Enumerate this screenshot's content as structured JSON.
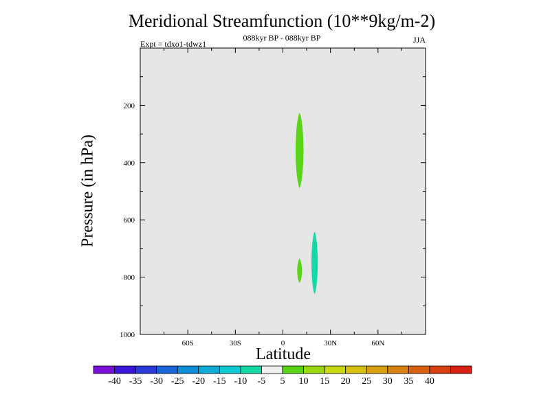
{
  "chart_data": {
    "type": "contour",
    "title": "Meridional Streamfunction (10**9kg/m-2)",
    "subtitle_center": "088kyr BP - 088kyr BP",
    "subtitle_left": "Expt = tdxo1-tdwz1",
    "subtitle_right": "JJA",
    "xlabel": "Latitude",
    "ylabel": "Pressure (in hPa)",
    "xlim": [
      -90,
      90
    ],
    "ylim": [
      1000,
      0
    ],
    "x_ticks": [
      {
        "value": -60,
        "label": "60S"
      },
      {
        "value": -30,
        "label": "30S"
      },
      {
        "value": 0,
        "label": "0"
      },
      {
        "value": 30,
        "label": "30N"
      },
      {
        "value": 60,
        "label": "60N"
      }
    ],
    "y_ticks": [
      {
        "value": 200,
        "label": "200"
      },
      {
        "value": 400,
        "label": "400"
      },
      {
        "value": 600,
        "label": "600"
      },
      {
        "value": 800,
        "label": "800"
      },
      {
        "value": 1000,
        "label": "1000"
      }
    ],
    "background_color": "#e6e6e6",
    "regions": [
      {
        "level": "5 to 10",
        "color": "#5ad416",
        "lat_min": 8,
        "lat_max": 13,
        "p_top": 225,
        "p_bottom": 490
      },
      {
        "level": "5 to 10",
        "color": "#5ad416",
        "lat_min": 9,
        "lat_max": 12,
        "p_top": 735,
        "p_bottom": 820
      },
      {
        "level": "-10 to -5",
        "color": "#14d8a6",
        "lat_min": 18,
        "lat_max": 22,
        "p_top": 640,
        "p_bottom": 860
      }
    ],
    "colorbar": {
      "colors": [
        "#7b0ed8",
        "#3a14d8",
        "#2a3ad8",
        "#1a66d8",
        "#0e8cd8",
        "#0eaad8",
        "#0ecad0",
        "#14d8a6",
        "#f0f0f0",
        "#5ad416",
        "#9ad810",
        "#c8d810",
        "#d8c010",
        "#d8a010",
        "#d88010",
        "#d86010",
        "#d84010",
        "#d82010"
      ],
      "labels": [
        "-40",
        "-35",
        "-30",
        "-25",
        "-20",
        "-15",
        "-10",
        "-5",
        "5",
        "10",
        "15",
        "20",
        "25",
        "30",
        "35",
        "40"
      ]
    }
  }
}
